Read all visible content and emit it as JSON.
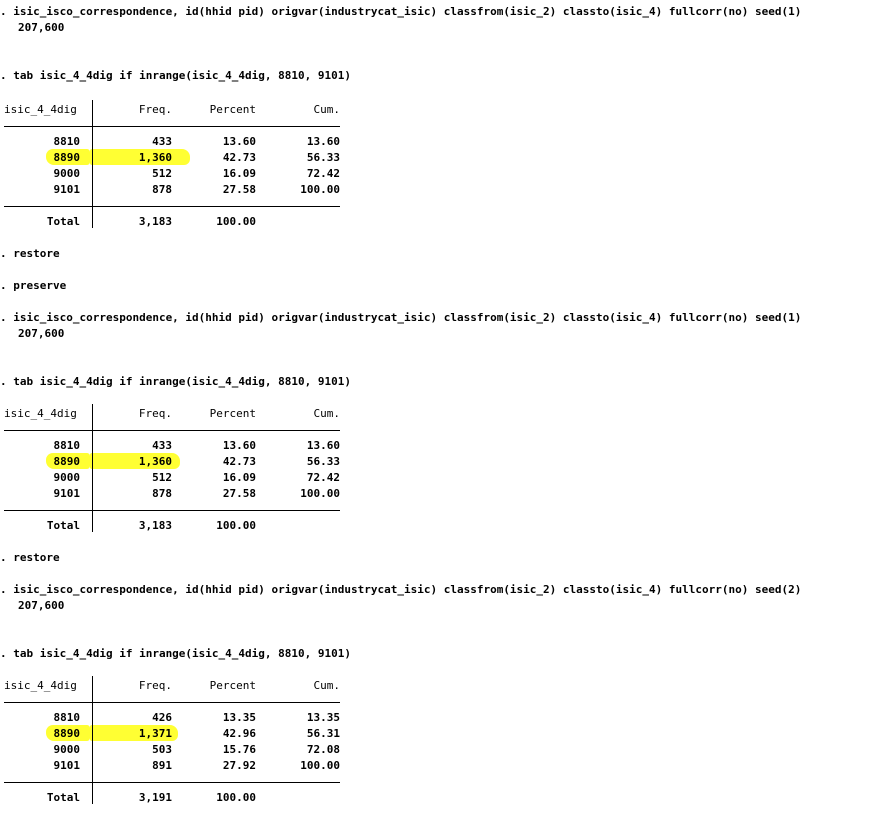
{
  "blocks": [
    {
      "command": ". isic_isco_correspondence, id(hhid pid) origvar(industrycat_isic) classfrom(isic_2) classto(isic_4) fullcorr(no) seed(1)",
      "output": "207,600",
      "tab_command": ". tab isic_4_4dig if inrange(isic_4_4dig, 8810, 9101)",
      "table": {
        "headers": [
          "isic_4_4dig",
          "Freq.",
          "Percent",
          "Cum."
        ],
        "rows": [
          {
            "label": "8810",
            "freq": "433",
            "percent": "13.60",
            "cum": "13.60"
          },
          {
            "label": "8890",
            "freq": "1,360",
            "percent": "42.73",
            "cum": "56.33",
            "highlighted": true
          },
          {
            "label": "9000",
            "freq": "512",
            "percent": "16.09",
            "cum": "72.42"
          },
          {
            "label": "9101",
            "freq": "878",
            "percent": "27.58",
            "cum": "100.00"
          }
        ],
        "total": {
          "label": "Total",
          "freq": "3,183",
          "percent": "100.00"
        }
      },
      "after": [
        ". restore",
        ". preserve"
      ]
    },
    {
      "command": ". isic_isco_correspondence, id(hhid pid) origvar(industrycat_isic) classfrom(isic_2) classto(isic_4) fullcorr(no) seed(1)",
      "output": "207,600",
      "tab_command": ". tab isic_4_4dig if inrange(isic_4_4dig, 8810, 9101)",
      "table": {
        "headers": [
          "isic_4_4dig",
          "Freq.",
          "Percent",
          "Cum."
        ],
        "rows": [
          {
            "label": "8810",
            "freq": "433",
            "percent": "13.60",
            "cum": "13.60"
          },
          {
            "label": "8890",
            "freq": "1,360",
            "percent": "42.73",
            "cum": "56.33",
            "highlighted": true
          },
          {
            "label": "9000",
            "freq": "512",
            "percent": "16.09",
            "cum": "72.42"
          },
          {
            "label": "9101",
            "freq": "878",
            "percent": "27.58",
            "cum": "100.00"
          }
        ],
        "total": {
          "label": "Total",
          "freq": "3,183",
          "percent": "100.00"
        }
      },
      "after": [
        ". restore"
      ]
    },
    {
      "command": ". isic_isco_correspondence, id(hhid pid) origvar(industrycat_isic) classfrom(isic_2) classto(isic_4) fullcorr(no) seed(2)",
      "output": "207,600",
      "tab_command": ". tab isic_4_4dig if inrange(isic_4_4dig, 8810, 9101)",
      "table": {
        "headers": [
          "isic_4_4dig",
          "Freq.",
          "Percent",
          "Cum."
        ],
        "rows": [
          {
            "label": "8810",
            "freq": "426",
            "percent": "13.35",
            "cum": "13.35"
          },
          {
            "label": "8890",
            "freq": "1,371",
            "percent": "42.96",
            "cum": "56.31",
            "highlighted": true
          },
          {
            "label": "9000",
            "freq": "503",
            "percent": "15.76",
            "cum": "72.08"
          },
          {
            "label": "9101",
            "freq": "891",
            "percent": "27.92",
            "cum": "100.00"
          }
        ],
        "total": {
          "label": "Total",
          "freq": "3,191",
          "percent": "100.00"
        }
      },
      "after": []
    }
  ],
  "colors": {
    "highlight": "#ffff33",
    "text": "#000000",
    "background": "#ffffff"
  }
}
